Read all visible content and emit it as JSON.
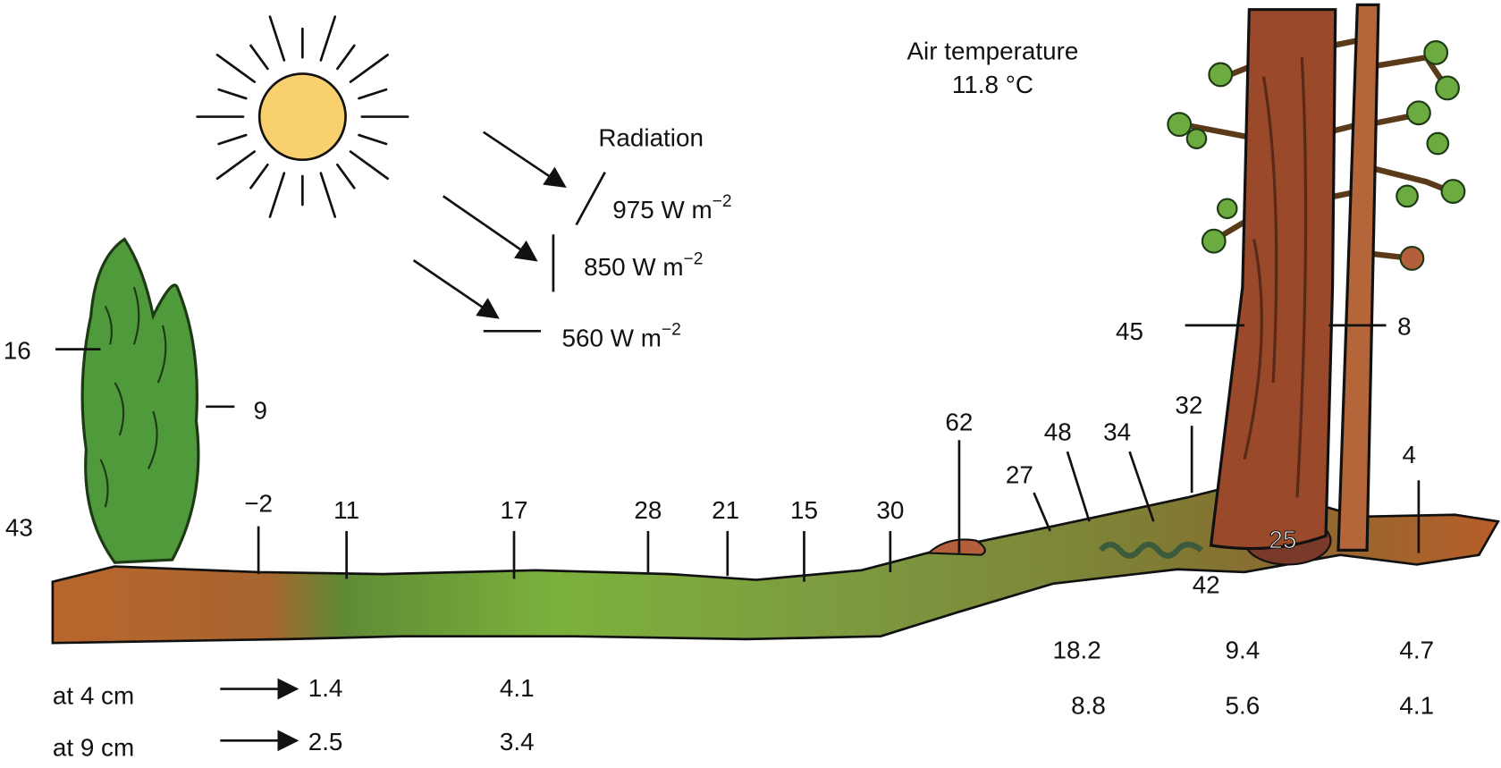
{
  "air": {
    "label": "Air temperature",
    "value": "11.8 °C"
  },
  "radiation": {
    "title": "Radiation",
    "fluxes": [
      {
        "text": "975 W m",
        "sup": "−2"
      },
      {
        "text": "850 W m",
        "sup": "−2"
      },
      {
        "text": "560 W m",
        "sup": "−2"
      }
    ]
  },
  "surface_temperatures": [
    "16",
    "9",
    "43",
    "−2",
    "11",
    "17",
    "28",
    "21",
    "15",
    "30",
    "62",
    "27",
    "48",
    "34",
    "32",
    "45",
    "8",
    "4",
    "25",
    "42"
  ],
  "depths": [
    {
      "label": "at 4 cm",
      "values": [
        "1.4",
        "4.1",
        "18.2",
        "9.4",
        "4.7"
      ]
    },
    {
      "label": "at 9 cm",
      "values": [
        "2.5",
        "3.4",
        "8.8",
        "5.6",
        "4.1"
      ]
    }
  ]
}
